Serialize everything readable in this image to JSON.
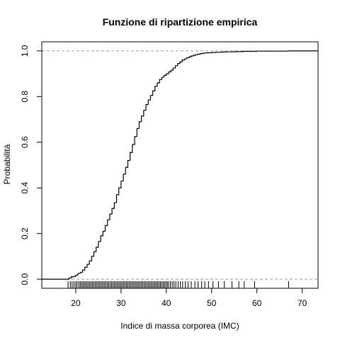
{
  "chart_data": {
    "type": "line",
    "title": "Funzione di ripartizione empirica",
    "xlabel": "Indice di massa corporea (IMC)",
    "ylabel": "Probabilità",
    "xlim": [
      12.5,
      73.5
    ],
    "ylim": [
      -0.04,
      1.04
    ],
    "x_ticks": [
      20,
      30,
      40,
      50,
      60,
      70
    ],
    "y_ticks": [
      0.0,
      0.2,
      0.4,
      0.6,
      0.8,
      1.0
    ],
    "x_tick_labels": [
      "20",
      "30",
      "40",
      "50",
      "60",
      "70"
    ],
    "y_tick_labels": [
      "0.0",
      "0.2",
      "0.4",
      "0.6",
      "0.8",
      "1.0"
    ],
    "reference_lines": [
      0,
      1
    ],
    "series": [
      {
        "x": [
          18.0,
          18.5,
          19.0,
          19.5,
          20.0,
          20.5,
          21.0,
          21.5,
          22.0,
          22.5,
          23.0,
          23.5,
          24.0,
          24.5,
          25.0,
          25.5,
          26.0,
          26.5,
          27.0,
          27.5,
          28.0,
          28.5,
          29.0,
          29.5,
          30.0,
          30.5,
          31.0,
          31.5,
          32.0,
          32.5,
          33.0,
          33.5,
          34.0,
          34.5,
          35.0,
          35.5,
          36.0,
          36.5,
          37.0,
          37.5,
          38.0,
          38.5,
          39.0,
          39.5,
          40.0,
          40.5,
          41.0,
          41.5,
          42.0,
          42.5,
          43.0,
          43.5,
          44.0,
          44.5,
          45.0,
          45.5,
          46.0,
          46.5,
          47.0,
          47.5,
          48.0,
          48.5,
          49.0,
          50.0,
          51.0,
          52.0,
          53.0,
          54.0,
          55.0,
          56.0,
          57.0,
          58.0,
          59.0,
          60.0,
          62.0,
          64.0,
          66.0,
          67.0
        ],
        "y": [
          0.0,
          0.005,
          0.01,
          0.012,
          0.018,
          0.025,
          0.03,
          0.04,
          0.052,
          0.065,
          0.08,
          0.1,
          0.12,
          0.14,
          0.165,
          0.19,
          0.21,
          0.235,
          0.26,
          0.285,
          0.31,
          0.335,
          0.37,
          0.4,
          0.43,
          0.46,
          0.49,
          0.52,
          0.555,
          0.59,
          0.625,
          0.66,
          0.69,
          0.715,
          0.74,
          0.765,
          0.785,
          0.805,
          0.825,
          0.845,
          0.86,
          0.875,
          0.885,
          0.893,
          0.9,
          0.908,
          0.915,
          0.925,
          0.935,
          0.945,
          0.952,
          0.96,
          0.965,
          0.97,
          0.974,
          0.978,
          0.981,
          0.984,
          0.986,
          0.988,
          0.99,
          0.991,
          0.992,
          0.993,
          0.994,
          0.995,
          0.996,
          0.996,
          0.997,
          0.997,
          0.998,
          0.998,
          0.998,
          0.999,
          0.999,
          0.999,
          0.999,
          1.0
        ]
      }
    ],
    "rug": [
      18.3,
      18.8,
      19.2,
      19.6,
      20.0,
      20.3,
      20.7,
      21.0,
      21.3,
      21.6,
      21.9,
      22.2,
      22.5,
      22.8,
      23.1,
      23.4,
      23.7,
      24.0,
      24.3,
      24.6,
      24.9,
      25.2,
      25.5,
      25.8,
      26.1,
      26.4,
      26.7,
      27.0,
      27.3,
      27.6,
      27.9,
      28.2,
      28.5,
      28.8,
      29.1,
      29.4,
      29.7,
      30.0,
      30.3,
      30.6,
      30.9,
      31.2,
      31.5,
      31.8,
      32.1,
      32.4,
      32.7,
      33.0,
      33.3,
      33.6,
      33.9,
      34.2,
      34.5,
      34.8,
      35.1,
      35.4,
      35.7,
      36.0,
      36.3,
      36.6,
      36.9,
      37.2,
      37.5,
      37.8,
      38.1,
      38.4,
      38.7,
      39.0,
      39.3,
      39.6,
      39.9,
      40.2,
      40.5,
      40.9,
      41.3,
      41.7,
      42.1,
      42.6,
      43.1,
      43.6,
      44.2,
      44.8,
      45.5,
      46.3,
      47.0,
      47.8,
      48.5,
      49.3,
      50.3,
      51.5,
      52.8,
      54.5,
      56.0,
      57.2,
      59.5,
      67.0
    ]
  }
}
